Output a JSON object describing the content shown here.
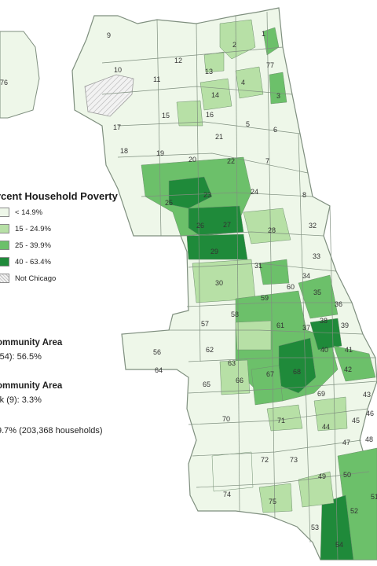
{
  "legend": {
    "title": "rcent Household Poverty",
    "items": [
      {
        "label": "< 14.9%",
        "color": "#eef7e9"
      },
      {
        "label": "15 - 24.9%",
        "color": "#b7e0a6"
      },
      {
        "label": "25 - 39.9%",
        "color": "#6cc06a"
      },
      {
        "label": "40 - 63.4%",
        "color": "#1f8a3a"
      },
      {
        "label": "Not Chicago",
        "color": "#f2f2f2"
      }
    ]
  },
  "stats": {
    "highest_label": "ommunity Area",
    "highest_value": "(54): 56.5%",
    "lowest_label": "ommunity Area",
    "lowest_value": "rk (9): 3.3%",
    "citywide": "9.7% (203,368 households)"
  },
  "areas": [
    "76",
    "9",
    "1",
    "2",
    "77",
    "10",
    "12",
    "13",
    "11",
    "4",
    "3",
    "14",
    "15",
    "16",
    "5",
    "17",
    "6",
    "21",
    "7",
    "18",
    "19",
    "20",
    "22",
    "23",
    "24",
    "8",
    "25",
    "26",
    "27",
    "28",
    "32",
    "29",
    "33",
    "31",
    "30",
    "60",
    "34",
    "59",
    "35",
    "58",
    "36",
    "57",
    "61",
    "37",
    "38",
    "39",
    "62",
    "40",
    "56",
    "41",
    "64",
    "67",
    "68",
    "42",
    "66",
    "65",
    "63",
    "69",
    "43",
    "70",
    "71",
    "46",
    "44",
    "45",
    "47",
    "48",
    "72",
    "73",
    "49",
    "50",
    "51",
    "74",
    "75",
    "52",
    "53",
    "54"
  ]
}
